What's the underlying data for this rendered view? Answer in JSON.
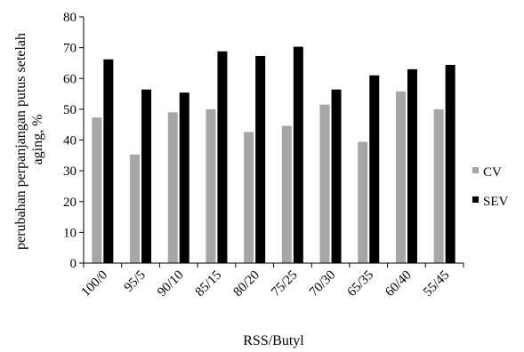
{
  "chart_data": {
    "type": "bar",
    "xlabel": "RSS/Butyl",
    "ylabel_lines": [
      "perubahan perpanjangan putus setelah",
      "aging, %"
    ],
    "ylim": [
      0,
      80
    ],
    "yticks": [
      0,
      10,
      20,
      30,
      40,
      50,
      60,
      70,
      80
    ],
    "categories": [
      "100/0",
      "95/5",
      "90/10",
      "85/15",
      "80/20",
      "75/25",
      "70/30",
      "65/35",
      "60/40",
      "55/45"
    ],
    "series": [
      {
        "name": "CV",
        "color": "#a6a6a6",
        "values": [
          47.3,
          35.3,
          49.0,
          50.0,
          42.6,
          44.6,
          51.5,
          39.4,
          55.8,
          50.0
        ]
      },
      {
        "name": "SEV",
        "color": "#000000",
        "values": [
          66.2,
          56.4,
          55.4,
          68.8,
          67.3,
          70.3,
          56.4,
          61.0,
          63.0,
          64.4
        ]
      }
    ],
    "legend_position": "right",
    "grid": false
  }
}
